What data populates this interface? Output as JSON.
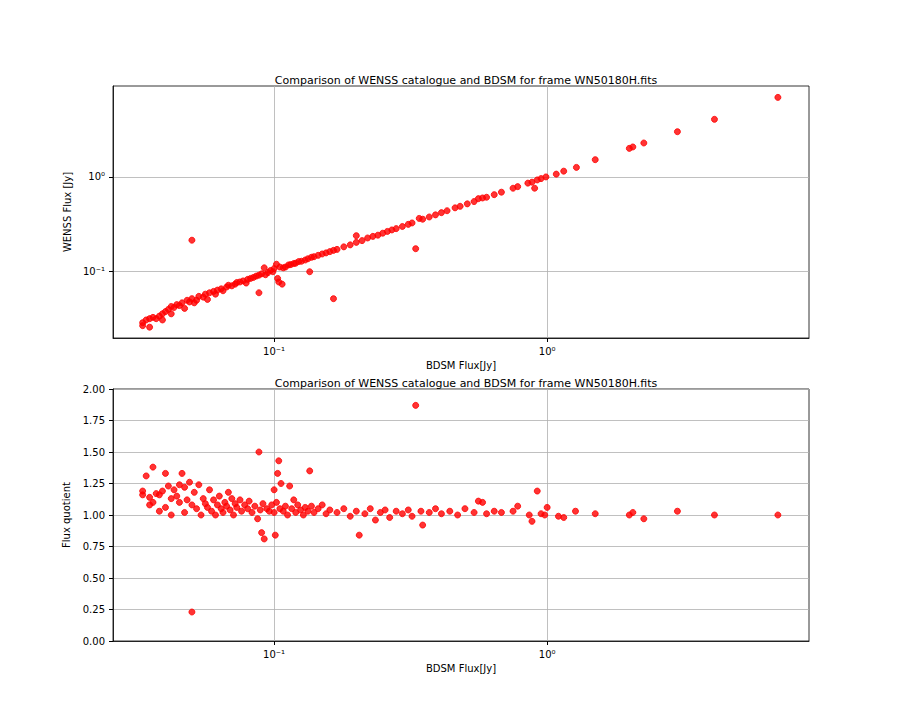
{
  "chart_data": [
    {
      "type": "scatter",
      "title": "Comparison of WENSS catalogue and BDSM for frame WN50180H.fits",
      "x_label": "BDSM Flux[Jy]",
      "y_label": "WENSS Flux [Jy]",
      "log": true,
      "grid": true,
      "color": "#ff0000",
      "marker": "circle",
      "xlim": [
        0.0257,
        9.1
      ],
      "ylim": [
        0.02,
        9.1
      ],
      "xticks": [
        {
          "value": 0.1,
          "label": "10⁻¹"
        },
        {
          "value": 1,
          "label": "10⁰"
        }
      ],
      "yticks": [
        {
          "value": 0.1,
          "label": "10⁻¹"
        },
        {
          "value": 1,
          "label": "10⁰"
        }
      ],
      "x": [
        0.033,
        0.033,
        0.034,
        0.035,
        0.035,
        0.036,
        0.037,
        0.038,
        0.039,
        0.039,
        0.04,
        0.041,
        0.042,
        0.042,
        0.043,
        0.044,
        0.045,
        0.046,
        0.047,
        0.048,
        0.049,
        0.05,
        0.05,
        0.051,
        0.052,
        0.053,
        0.055,
        0.056,
        0.057,
        0.058,
        0.06,
        0.061,
        0.062,
        0.064,
        0.065,
        0.067,
        0.068,
        0.07,
        0.072,
        0.073,
        0.075,
        0.077,
        0.079,
        0.08,
        0.082,
        0.084,
        0.086,
        0.088,
        0.088,
        0.09,
        0.092,
        0.093,
        0.095,
        0.097,
        0.099,
        0.1,
        0.102,
        0.103,
        0.104,
        0.105,
        0.107,
        0.108,
        0.11,
        0.113,
        0.115,
        0.118,
        0.12,
        0.123,
        0.126,
        0.13,
        0.133,
        0.135,
        0.137,
        0.14,
        0.145,
        0.15,
        0.155,
        0.16,
        0.165,
        0.165,
        0.17,
        0.18,
        0.19,
        0.2,
        0.2,
        0.21,
        0.22,
        0.23,
        0.24,
        0.25,
        0.26,
        0.27,
        0.28,
        0.295,
        0.31,
        0.32,
        0.33,
        0.34,
        0.35,
        0.37,
        0.39,
        0.41,
        0.43,
        0.46,
        0.48,
        0.51,
        0.54,
        0.56,
        0.58,
        0.6,
        0.64,
        0.68,
        0.75,
        0.78,
        0.85,
        0.88,
        0.9,
        0.92,
        0.95,
        0.99,
        1.08,
        1.15,
        1.28,
        1.5,
        2.0,
        2.06,
        2.26,
        3.0,
        4.1,
        7.0
      ],
      "values": [
        0.029,
        0.027,
        0.031,
        0.026,
        0.032,
        0.033,
        0.032,
        0.034,
        0.036,
        0.031,
        0.038,
        0.04,
        0.043,
        0.036,
        0.042,
        0.045,
        0.044,
        0.047,
        0.041,
        0.05,
        0.048,
        0.052,
        0.215,
        0.047,
        0.05,
        0.055,
        0.054,
        0.058,
        0.051,
        0.06,
        0.062,
        0.058,
        0.064,
        0.066,
        0.063,
        0.069,
        0.072,
        0.071,
        0.074,
        0.077,
        0.078,
        0.08,
        0.076,
        0.083,
        0.085,
        0.087,
        0.09,
        0.06,
        0.092,
        0.095,
        0.11,
        0.093,
        0.098,
        0.103,
        0.1,
        0.108,
        0.12,
        0.085,
        0.078,
        0.112,
        0.074,
        0.11,
        0.112,
        0.118,
        0.119,
        0.122,
        0.123,
        0.128,
        0.129,
        0.133,
        0.137,
        0.1,
        0.142,
        0.144,
        0.149,
        0.154,
        0.158,
        0.163,
        0.052,
        0.168,
        0.172,
        0.183,
        0.192,
        0.24,
        0.204,
        0.213,
        0.227,
        0.236,
        0.243,
        0.255,
        0.266,
        0.276,
        0.285,
        0.3,
        0.316,
        0.327,
        0.175,
        0.365,
        0.358,
        0.378,
        0.398,
        0.42,
        0.44,
        0.472,
        0.49,
        0.52,
        0.55,
        0.59,
        0.6,
        0.61,
        0.65,
        0.69,
        0.76,
        0.79,
        0.86,
        0.88,
        0.76,
        0.93,
        0.96,
        1.0,
        1.07,
        1.15,
        1.26,
        1.52,
        2.0,
        2.07,
        2.28,
        3.0,
        4.05,
        6.9
      ]
    },
    {
      "type": "scatter",
      "title": "Comparison of WENSS catalogue and BDSM for frame WN50180H.fits",
      "x_label": "BDSM Flux[Jy]",
      "y_label": "Flux quotient",
      "log": "x",
      "grid": true,
      "color": "#ff0000",
      "marker": "circle",
      "xlim": [
        0.0257,
        9.1
      ],
      "ylim": [
        0,
        2
      ],
      "xticks": [
        {
          "value": 0.1,
          "label": "10⁻¹"
        },
        {
          "value": 1,
          "label": "10⁰"
        }
      ],
      "yticks": [
        {
          "value": 0,
          "label": "0.00"
        },
        0.25,
        {
          "value": 0.5,
          "label": "0.50"
        },
        0.75,
        {
          "value": 1,
          "label": "1.00"
        },
        1.25,
        {
          "value": 1.5,
          "label": "1.50"
        },
        1.75,
        {
          "value": 2,
          "label": "2.00"
        }
      ],
      "x": [
        0.033,
        0.033,
        0.034,
        0.035,
        0.035,
        0.036,
        0.036,
        0.037,
        0.038,
        0.038,
        0.039,
        0.04,
        0.04,
        0.041,
        0.042,
        0.042,
        0.043,
        0.044,
        0.045,
        0.045,
        0.046,
        0.047,
        0.047,
        0.048,
        0.049,
        0.05,
        0.05,
        0.051,
        0.052,
        0.053,
        0.054,
        0.055,
        0.056,
        0.057,
        0.058,
        0.059,
        0.06,
        0.061,
        0.062,
        0.063,
        0.064,
        0.065,
        0.066,
        0.067,
        0.068,
        0.069,
        0.07,
        0.071,
        0.072,
        0.073,
        0.075,
        0.076,
        0.078,
        0.08,
        0.081,
        0.083,
        0.085,
        0.087,
        0.088,
        0.089,
        0.09,
        0.091,
        0.092,
        0.094,
        0.096,
        0.098,
        0.1,
        0.1,
        0.101,
        0.102,
        0.103,
        0.104,
        0.105,
        0.106,
        0.108,
        0.11,
        0.112,
        0.114,
        0.116,
        0.118,
        0.12,
        0.122,
        0.125,
        0.128,
        0.13,
        0.133,
        0.135,
        0.137,
        0.14,
        0.145,
        0.15,
        0.155,
        0.16,
        0.17,
        0.18,
        0.19,
        0.2,
        0.205,
        0.215,
        0.225,
        0.235,
        0.245,
        0.255,
        0.265,
        0.28,
        0.295,
        0.31,
        0.32,
        0.33,
        0.345,
        0.35,
        0.37,
        0.39,
        0.41,
        0.44,
        0.47,
        0.5,
        0.54,
        0.56,
        0.58,
        0.6,
        0.64,
        0.68,
        0.75,
        0.78,
        0.86,
        0.88,
        0.92,
        0.95,
        0.98,
        1.0,
        1.1,
        1.15,
        1.27,
        1.5,
        2.0,
        2.06,
        2.26,
        3.0,
        4.1,
        7.0
      ],
      "values": [
        1.19,
        1.16,
        1.31,
        1.08,
        1.14,
        1.38,
        1.1,
        1.17,
        1.16,
        1.03,
        1.19,
        1.33,
        1.06,
        1.23,
        1.13,
        1.0,
        1.2,
        1.15,
        1.24,
        1.1,
        1.33,
        1.22,
        1.02,
        1.12,
        1.26,
        0.23,
        1.08,
        1.18,
        1.05,
        1.24,
        1.0,
        1.13,
        1.09,
        1.06,
        1.2,
        1.03,
        1.12,
        1.0,
        1.08,
        1.15,
        1.05,
        1.02,
        1.1,
        1.07,
        1.18,
        1.04,
        1.13,
        1.0,
        1.09,
        1.06,
        1.12,
        1.03,
        1.08,
        1.05,
        1.11,
        1.02,
        1.07,
        0.97,
        1.5,
        1.04,
        0.86,
        1.09,
        0.81,
        1.05,
        1.03,
        1.08,
        1.2,
        1.02,
        0.84,
        1.1,
        1.33,
        1.43,
        1.05,
        1.25,
        1.03,
        1.07,
        1.0,
        1.23,
        1.05,
        1.12,
        1.02,
        1.08,
        1.04,
        1.0,
        1.06,
        1.03,
        1.35,
        1.07,
        1.02,
        1.05,
        1.08,
        1.01,
        1.04,
        1.02,
        1.05,
        0.99,
        1.03,
        0.84,
        1.01,
        1.05,
        0.96,
        1.02,
        1.04,
        0.98,
        1.03,
        1.01,
        1.04,
        0.99,
        1.87,
        1.03,
        0.92,
        1.02,
        1.05,
        1.01,
        1.03,
        1.0,
        1.05,
        1.02,
        1.11,
        1.1,
        1.01,
        1.03,
        1.02,
        1.03,
        1.07,
        1.0,
        0.95,
        1.19,
        1.01,
        1.0,
        1.06,
        0.99,
        0.98,
        1.03,
        1.01,
        1.0,
        1.02,
        0.97,
        1.03,
        1.0,
        1.0
      ]
    }
  ]
}
